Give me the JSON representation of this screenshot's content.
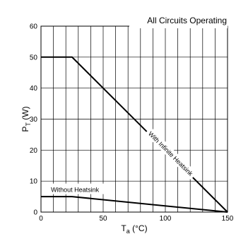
{
  "chart_data": {
    "type": "line",
    "title": "All Circuits Operating",
    "xlabel": {
      "main": "T",
      "sub": "a",
      "unit": " (°C)"
    },
    "ylabel": {
      "main": "P",
      "sub": "T",
      "unit": " (W)"
    },
    "xlim": [
      0,
      150
    ],
    "ylim": [
      0,
      60
    ],
    "x_grid_step": 10,
    "y_grid_step": 10,
    "x_tick_labels": [
      {
        "value": 0,
        "label": "0"
      },
      {
        "value": 50,
        "label": "50"
      },
      {
        "value": 100,
        "label": "100"
      },
      {
        "value": 150,
        "label": "150"
      }
    ],
    "y_tick_labels": [
      {
        "value": 0,
        "label": "0"
      },
      {
        "value": 10,
        "label": "10"
      },
      {
        "value": 20,
        "label": "20"
      },
      {
        "value": 30,
        "label": "30"
      },
      {
        "value": 40,
        "label": "40"
      },
      {
        "value": 50,
        "label": "50"
      },
      {
        "value": 60,
        "label": "60"
      }
    ],
    "grid": true,
    "series": [
      {
        "name": "With Infinite Heatsink",
        "x": [
          0,
          25,
          150
        ],
        "y": [
          50,
          50,
          0
        ]
      },
      {
        "name": "Without Heatsink",
        "x": [
          0,
          25,
          150
        ],
        "y": [
          5,
          5,
          0
        ]
      }
    ]
  }
}
